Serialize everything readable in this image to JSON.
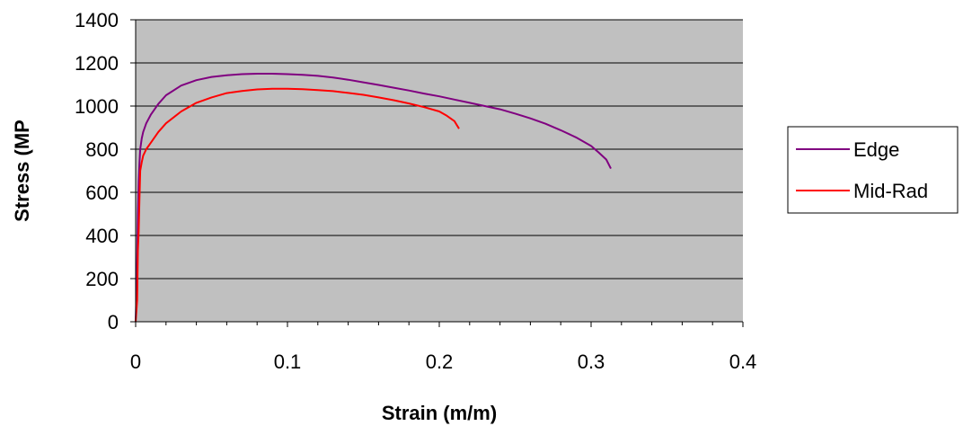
{
  "chart_data": {
    "type": "line",
    "title": "",
    "xlabel": "Strain (m/m)",
    "ylabel": "Stress (MP",
    "xlim": [
      0,
      0.4
    ],
    "ylim": [
      0,
      1400
    ],
    "x_ticks": [
      "0",
      "0.1",
      "0.2",
      "0.3",
      "0.4"
    ],
    "y_ticks": [
      "0",
      "200",
      "400",
      "600",
      "800",
      "1000",
      "1200",
      "1400"
    ],
    "x_tick_values": [
      0,
      0.1,
      0.2,
      0.3,
      0.4
    ],
    "y_tick_values": [
      0,
      200,
      400,
      600,
      800,
      1000,
      1200,
      1400
    ],
    "grid": "horizontal",
    "plot_background": "#c0c0c0",
    "legend_position": "right",
    "series": [
      {
        "name": "Edge",
        "color": "#800080",
        "x": [
          0,
          0.0005,
          0.001,
          0.0015,
          0.002,
          0.0025,
          0.003,
          0.004,
          0.005,
          0.007,
          0.01,
          0.015,
          0.02,
          0.03,
          0.04,
          0.05,
          0.06,
          0.07,
          0.08,
          0.09,
          0.1,
          0.11,
          0.12,
          0.13,
          0.14,
          0.15,
          0.16,
          0.17,
          0.18,
          0.19,
          0.2,
          0.21,
          0.22,
          0.23,
          0.24,
          0.25,
          0.26,
          0.27,
          0.28,
          0.29,
          0.3,
          0.305,
          0.31,
          0.313
        ],
        "y": [
          0,
          120,
          300,
          500,
          650,
          730,
          800,
          850,
          880,
          920,
          960,
          1010,
          1050,
          1095,
          1120,
          1135,
          1143,
          1148,
          1150,
          1150,
          1148,
          1145,
          1140,
          1132,
          1122,
          1110,
          1098,
          1085,
          1072,
          1058,
          1045,
          1030,
          1015,
          1000,
          985,
          965,
          943,
          918,
          888,
          855,
          815,
          785,
          752,
          710
        ]
      },
      {
        "name": "Mid-Rad",
        "color": "#ff0000",
        "x": [
          0,
          0.001,
          0.0015,
          0.002,
          0.0025,
          0.003,
          0.004,
          0.005,
          0.007,
          0.01,
          0.015,
          0.02,
          0.03,
          0.04,
          0.05,
          0.06,
          0.07,
          0.08,
          0.09,
          0.1,
          0.11,
          0.12,
          0.13,
          0.14,
          0.15,
          0.16,
          0.17,
          0.18,
          0.19,
          0.2,
          0.205,
          0.21,
          0.213
        ],
        "y": [
          0,
          100,
          330,
          420,
          560,
          700,
          740,
          770,
          800,
          830,
          880,
          920,
          975,
          1015,
          1040,
          1060,
          1070,
          1077,
          1080,
          1080,
          1078,
          1074,
          1069,
          1061,
          1052,
          1040,
          1027,
          1012,
          995,
          975,
          955,
          930,
          895
        ]
      }
    ]
  }
}
